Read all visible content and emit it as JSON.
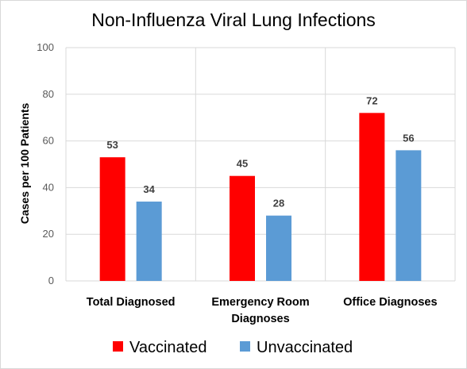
{
  "chart_data": {
    "type": "bar",
    "title": "Non-Influenza Viral Lung Infections",
    "xlabel": "",
    "ylabel": "Cases per 100 Patients",
    "ylim": [
      0,
      100
    ],
    "yticks": [
      0,
      20,
      40,
      60,
      80,
      100
    ],
    "categories": [
      [
        "Total Diagnosed"
      ],
      [
        "Emergency Room",
        "Diagnoses"
      ],
      [
        "Office Diagnoses"
      ]
    ],
    "series": [
      {
        "name": "Vaccinated",
        "color": "#ff0000",
        "values": [
          53,
          45,
          72
        ]
      },
      {
        "name": "Unvaccinated",
        "color": "#5b9bd5",
        "values": [
          34,
          28,
          56
        ]
      }
    ],
    "grid": true,
    "data_labels": true,
    "legend_position": "bottom"
  }
}
